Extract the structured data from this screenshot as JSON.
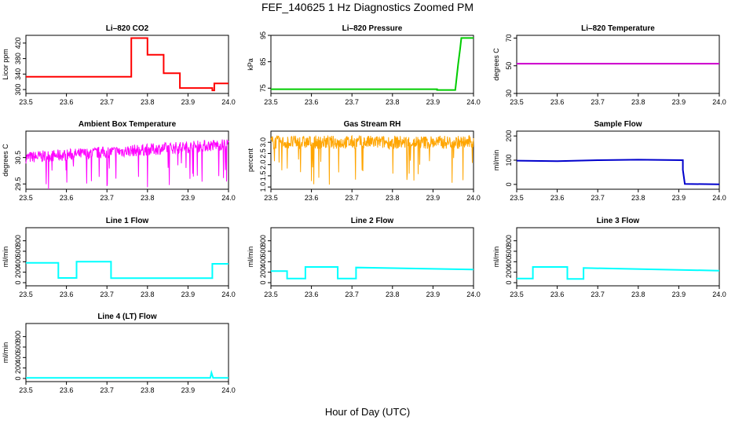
{
  "title": "FEF_140625  1 Hz Diagnostics Zoomed PM",
  "xlabel": "Hour of Day (UTC)",
  "chart_data": [
    {
      "type": "line",
      "title": "Li–820 CO2",
      "ylabel": "Licor ppm",
      "color": "#ff0000",
      "xlim": [
        23.5,
        24.0
      ],
      "ylim": [
        290,
        440
      ],
      "yticks": [
        "300",
        "340",
        "380",
        "420"
      ],
      "xticks": [
        "23.5",
        "23.6",
        "23.7",
        "23.8",
        "23.9",
        "24.0"
      ],
      "series": [
        {
          "x": [
            23.5,
            23.76,
            23.76,
            23.8,
            23.8,
            23.84,
            23.84,
            23.88,
            23.88,
            23.96,
            23.96,
            23.965,
            23.965,
            24.0
          ],
          "y": [
            333,
            333,
            433,
            433,
            390,
            390,
            342,
            342,
            304,
            304,
            298,
            298,
            316,
            316
          ]
        }
      ]
    },
    {
      "type": "line",
      "title": "Li–820 Pressure",
      "ylabel": "kPa",
      "color": "#00cc00",
      "xlim": [
        23.5,
        24.0
      ],
      "ylim": [
        73,
        95
      ],
      "yticks": [
        "75",
        "85",
        "95"
      ],
      "xticks": [
        "23.5",
        "23.6",
        "23.7",
        "23.8",
        "23.9",
        "24.0"
      ],
      "series": [
        {
          "x": [
            23.5,
            23.91,
            23.91,
            23.955,
            23.962,
            23.967,
            23.97,
            24.0
          ],
          "y": [
            74.6,
            74.6,
            74.3,
            74.3,
            84,
            90,
            94,
            94
          ]
        }
      ]
    },
    {
      "type": "line",
      "title": "Li–820 Temperature",
      "ylabel": "degrees C",
      "color": "#cc00cc",
      "xlim": [
        23.5,
        24.0
      ],
      "ylim": [
        30,
        72
      ],
      "yticks": [
        "30",
        "50",
        "70"
      ],
      "xticks": [
        "23.5",
        "23.6",
        "23.7",
        "23.8",
        "23.9",
        "24.0"
      ],
      "series": [
        {
          "x": [
            23.5,
            24.0
          ],
          "y": [
            51.5,
            51.5
          ]
        }
      ]
    },
    {
      "type": "line",
      "title": "Ambient Box Temperature",
      "ylabel": "degrees C",
      "color": "#ff00ff",
      "xlim": [
        23.5,
        24.0
      ],
      "ylim": [
        29.3,
        31.5
      ],
      "yticks": [
        "29.5",
        "30.5"
      ],
      "xticks": [
        "23.5",
        "23.6",
        "23.7",
        "23.8",
        "23.9",
        "24.0"
      ],
      "series": [
        {
          "x": [
            23.5,
            23.6,
            23.7,
            23.8,
            23.9,
            24.0
          ],
          "y": [
            30.5,
            30.6,
            30.7,
            30.8,
            30.9,
            31.0
          ],
          "noise": 0.45
        }
      ]
    },
    {
      "type": "line",
      "title": "Gas Stream RH",
      "ylabel": "percent",
      "color": "#ffa500",
      "xlim": [
        23.5,
        24.0
      ],
      "ylim": [
        0.9,
        3.5
      ],
      "yticks": [
        "1.0",
        "1.5",
        "2.0",
        "2.5",
        "3.0"
      ],
      "xticks": [
        "23.5",
        "23.6",
        "23.7",
        "23.8",
        "23.9",
        "24.0"
      ],
      "series": [
        {
          "x": [
            23.5,
            24.0
          ],
          "y": [
            3.0,
            3.0
          ],
          "noise": 0.6
        }
      ]
    },
    {
      "type": "line",
      "title": "Sample Flow",
      "ylabel": "ml/min",
      "color": "#0000cc",
      "xlim": [
        23.5,
        24.0
      ],
      "ylim": [
        -20,
        220
      ],
      "yticks": [
        "0",
        "100",
        "200"
      ],
      "xticks": [
        "23.5",
        "23.6",
        "23.7",
        "23.8",
        "23.9",
        "24.0"
      ],
      "series": [
        {
          "x": [
            23.5,
            23.6,
            23.7,
            23.8,
            23.91,
            23.91,
            23.915,
            24.0
          ],
          "y": [
            98,
            96,
            100,
            102,
            100,
            60,
            2,
            0
          ]
        }
      ]
    },
    {
      "type": "line",
      "title": "Line 1 Flow",
      "ylabel": "ml/min",
      "color": "#00ffff",
      "xlim": [
        23.5,
        24.0
      ],
      "ylim": [
        -60,
        1050
      ],
      "yticks": [
        "0",
        "200",
        "400",
        "600",
        "800"
      ],
      "xticks": [
        "23.5",
        "23.6",
        "23.7",
        "23.8",
        "23.9",
        "24.0"
      ],
      "series": [
        {
          "x": [
            23.5,
            23.58,
            23.58,
            23.625,
            23.625,
            23.71,
            23.71,
            23.96,
            23.96,
            24.0
          ],
          "y": [
            380,
            380,
            90,
            90,
            400,
            400,
            85,
            85,
            360,
            360
          ]
        }
      ]
    },
    {
      "type": "line",
      "title": "Line 2 Flow",
      "ylabel": "ml/min",
      "color": "#00ffff",
      "xlim": [
        23.5,
        24.0
      ],
      "ylim": [
        -60,
        1050
      ],
      "yticks": [
        "0",
        "200",
        "400",
        "600",
        "800"
      ],
      "xticks": [
        "23.5",
        "23.6",
        "23.7",
        "23.8",
        "23.9",
        "24.0"
      ],
      "series": [
        {
          "x": [
            23.5,
            23.54,
            23.54,
            23.585,
            23.585,
            23.665,
            23.665,
            23.71,
            23.71,
            24.0
          ],
          "y": [
            220,
            220,
            80,
            80,
            300,
            300,
            80,
            80,
            290,
            250
          ]
        }
      ]
    },
    {
      "type": "line",
      "title": "Line 3 Flow",
      "ylabel": "ml/min",
      "color": "#00ffff",
      "xlim": [
        23.5,
        24.0
      ],
      "ylim": [
        -60,
        1050
      ],
      "yticks": [
        "0",
        "200",
        "400",
        "600",
        "800"
      ],
      "xticks": [
        "23.5",
        "23.6",
        "23.7",
        "23.8",
        "23.9",
        "24.0"
      ],
      "series": [
        {
          "x": [
            23.5,
            23.54,
            23.54,
            23.625,
            23.625,
            23.665,
            23.665,
            24.0
          ],
          "y": [
            80,
            80,
            300,
            300,
            70,
            70,
            280,
            230
          ]
        }
      ]
    },
    {
      "type": "line",
      "title": "Line 4 (LT) Flow",
      "ylabel": "ml/min",
      "color": "#00ffff",
      "xlim": [
        23.5,
        24.0
      ],
      "ylim": [
        -60,
        1050
      ],
      "yticks": [
        "0",
        "200",
        "400",
        "600",
        "800"
      ],
      "xticks": [
        "23.5",
        "23.6",
        "23.7",
        "23.8",
        "23.9",
        "24.0"
      ],
      "series": [
        {
          "x": [
            23.5,
            23.955,
            23.958,
            23.962,
            24.0
          ],
          "y": [
            10,
            10,
            110,
            10,
            10
          ]
        }
      ]
    }
  ]
}
